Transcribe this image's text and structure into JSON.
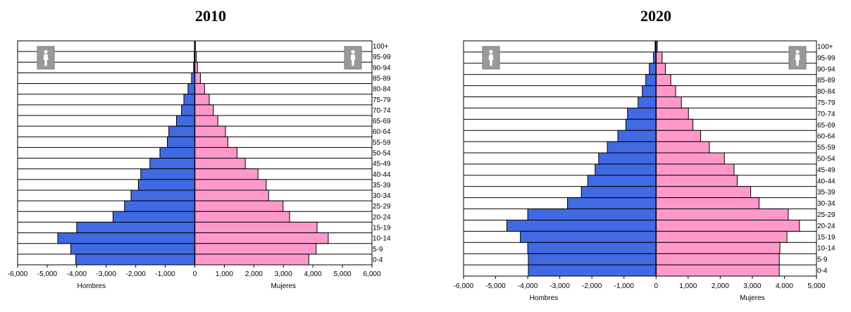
{
  "chart_data": [
    {
      "type": "bar",
      "title": "2010",
      "categories": [
        "100+",
        "95-99",
        "90-94",
        "85-89",
        "80-84",
        "75-79",
        "70-74",
        "65-69",
        "60-64",
        "55-59",
        "50-54",
        "45-49",
        "40-44",
        "35-39",
        "30-34",
        "25-29",
        "20-24",
        "15-19",
        "10-14",
        "5-9",
        "0-4"
      ],
      "series": [
        {
          "name": "Hombres",
          "values": [
            -10,
            -20,
            -40,
            -110,
            -230,
            -370,
            -450,
            -620,
            -880,
            -930,
            -1180,
            -1520,
            -1830,
            -1910,
            -2160,
            -2380,
            -2770,
            -4000,
            -4640,
            -4200,
            -4030
          ]
        },
        {
          "name": "Mujeres",
          "values": [
            20,
            50,
            90,
            190,
            330,
            490,
            630,
            780,
            1040,
            1120,
            1430,
            1710,
            2140,
            2420,
            2500,
            2990,
            3210,
            4140,
            4520,
            4110,
            3860
          ]
        }
      ],
      "xticks": [
        "-6,000",
        "-5,000",
        "-4,000",
        "-3,000",
        "-2,000",
        "-1,000",
        "0",
        "1,000",
        "2,000",
        "3,000",
        "4,000",
        "5,000",
        "6,000"
      ],
      "xlim": [
        -6000,
        6000
      ],
      "colors": {
        "Hombres": "#4169E1",
        "Mujeres": "#FF99CC"
      },
      "grid": true
    },
    {
      "type": "bar",
      "title": "2020",
      "categories": [
        "100+",
        "95-99",
        "90-94",
        "85-89",
        "80-84",
        "75-79",
        "70-74",
        "65-69",
        "60-64",
        "55-59",
        "50-54",
        "45-49",
        "40-44",
        "35-39",
        "30-34",
        "25-29",
        "20-24",
        "15-19",
        "10-14",
        "5-9",
        "0-4"
      ],
      "series": [
        {
          "name": "Hombres",
          "values": [
            -30,
            -80,
            -210,
            -320,
            -430,
            -560,
            -890,
            -940,
            -1190,
            -1520,
            -1790,
            -1900,
            -2130,
            -2330,
            -2760,
            -4000,
            -4650,
            -4230,
            -4000,
            -3980,
            -3980
          ]
        },
        {
          "name": "Mujeres",
          "values": [
            40,
            190,
            290,
            460,
            610,
            790,
            1010,
            1150,
            1390,
            1660,
            2130,
            2430,
            2530,
            2950,
            3210,
            4120,
            4470,
            4080,
            3860,
            3840,
            3840
          ]
        }
      ],
      "xticks": [
        "-6,000",
        "-5,000",
        "-4,000",
        "-3,000",
        "-2,000",
        "-1,000",
        "0",
        "1,000",
        "2,000",
        "3,000",
        "4,000",
        "5,000"
      ],
      "xlim": [
        -6000,
        5000
      ],
      "colors": {
        "Hombres": "#4169E1",
        "Mujeres": "#FF99CC"
      },
      "grid": true
    }
  ]
}
